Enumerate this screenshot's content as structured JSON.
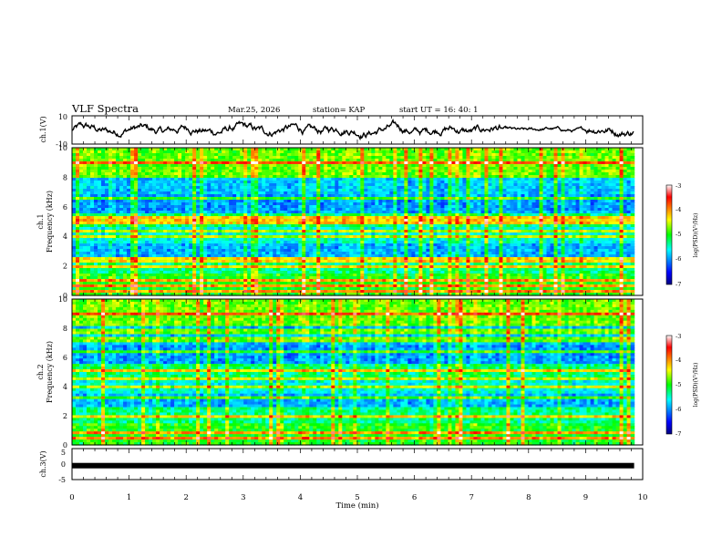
{
  "header": {
    "title": "VLF Spectra",
    "date": "Mar.25, 2026",
    "station": "station= KAP",
    "start": "start  UT =   16: 40: 1"
  },
  "chart_data": [
    {
      "type": "line",
      "id": "ch1",
      "ylabel": "ch.1(V)",
      "ylim": [
        -10,
        10
      ],
      "yticks": [
        "10",
        "-10"
      ],
      "xlim": [
        0,
        10
      ],
      "trace_end_min": 9.85,
      "description_series": "noisy waveform, amplitude mostly within +-7 V"
    },
    {
      "type": "heatmap",
      "id": "ch1_spec",
      "ylabel_line1": "ch.1",
      "ylabel_line2": "Frequency  (kHz)",
      "ylim": [
        0,
        10
      ],
      "yticks": [
        "0",
        "2",
        "4",
        "6",
        "8",
        "10"
      ],
      "xlim": [
        0,
        10
      ],
      "colorbar": {
        "label": "log(PSD)(V²/Hz)",
        "range": [
          -7,
          -3
        ],
        "ticks": [
          "-3",
          "-4",
          "-5",
          "-6",
          "-7"
        ]
      },
      "bright_lines_khz": [
        0.3,
        0.6,
        1.0,
        2.0,
        2.4,
        4.0,
        4.3,
        5.0,
        5.3,
        6.6,
        8.0,
        9.0
      ]
    },
    {
      "type": "heatmap",
      "id": "ch2_spec",
      "ylabel_line1": "ch.2",
      "ylabel_line2": "Frequency  (kHz)",
      "ylim": [
        0,
        10
      ],
      "yticks": [
        "0",
        "2",
        "4",
        "6",
        "8",
        "10"
      ],
      "xlim": [
        0,
        10
      ],
      "colorbar": {
        "label": "log(PSD)(V²/Hz)",
        "range": [
          -7,
          -3
        ],
        "ticks": [
          "-3",
          "-4",
          "-5",
          "-6",
          "-7"
        ]
      },
      "bright_lines_khz": [
        0.4,
        0.8,
        1.9,
        3.3,
        4.0,
        4.6,
        5.1,
        6.4,
        7.2,
        7.8,
        9.0
      ]
    },
    {
      "type": "line",
      "id": "ch3",
      "ylabel": "ch.3(V)",
      "ylim": [
        -5,
        5
      ],
      "yticks": [
        "5",
        "0",
        "-5"
      ],
      "xlim": [
        0,
        10
      ],
      "trace_value": -0.5,
      "trace_end_min": 9.85
    }
  ],
  "xaxis": {
    "label": "Time  (min)",
    "ticks": [
      "0",
      "1",
      "2",
      "3",
      "4",
      "5",
      "6",
      "7",
      "8",
      "9",
      "10"
    ]
  }
}
